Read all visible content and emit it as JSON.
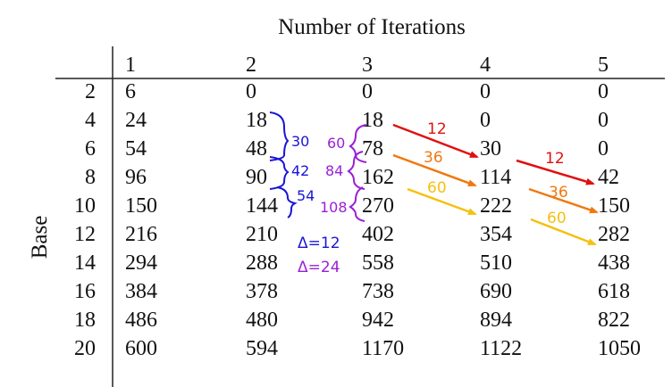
{
  "table": {
    "title": "Number of Iterations",
    "row_axis_label": "Base",
    "columns": [
      "1",
      "2",
      "3",
      "4",
      "5"
    ],
    "rows": [
      {
        "base": "2",
        "values": [
          "6",
          "0",
          "0",
          "0",
          "0"
        ]
      },
      {
        "base": "4",
        "values": [
          "24",
          "18",
          "18",
          "0",
          "0"
        ]
      },
      {
        "base": "6",
        "values": [
          "54",
          "48",
          "78",
          "30",
          "0"
        ]
      },
      {
        "base": "8",
        "values": [
          "96",
          "90",
          "162",
          "114",
          "42"
        ]
      },
      {
        "base": "10",
        "values": [
          "150",
          "144",
          "270",
          "222",
          "150"
        ]
      },
      {
        "base": "12",
        "values": [
          "216",
          "210",
          "402",
          "354",
          "282"
        ]
      },
      {
        "base": "14",
        "values": [
          "294",
          "288",
          "558",
          "510",
          "438"
        ]
      },
      {
        "base": "16",
        "values": [
          "384",
          "378",
          "738",
          "690",
          "618"
        ]
      },
      {
        "base": "18",
        "values": [
          "486",
          "480",
          "942",
          "894",
          "822"
        ]
      },
      {
        "base": "20",
        "values": [
          "600",
          "594",
          "1170",
          "1122",
          "1050"
        ]
      }
    ]
  },
  "annotations": {
    "col2_differences": {
      "color": "#1a14d6",
      "labels": [
        "30",
        "42",
        "54"
      ]
    },
    "col3_differences": {
      "color": "#9a1fd6",
      "labels": [
        "60",
        "84",
        "108"
      ]
    },
    "delta_blue": {
      "text": "Δ=12",
      "color": "#1a14d6"
    },
    "delta_purple": {
      "text": "Δ=24",
      "color": "#9a1fd6"
    },
    "arrows": [
      {
        "label": "12",
        "color": "#e01010"
      },
      {
        "label": "36",
        "color": "#f07810"
      },
      {
        "label": "60",
        "color": "#f5c010"
      },
      {
        "label": "12",
        "color": "#e01010"
      },
      {
        "label": "36",
        "color": "#f07810"
      },
      {
        "label": "60",
        "color": "#f5c010"
      }
    ]
  }
}
